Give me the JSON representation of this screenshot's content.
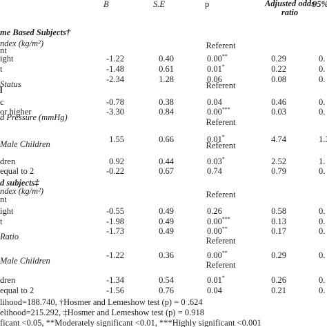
{
  "header": {
    "b": "B",
    "se": "S.E",
    "p": "p",
    "or": "Adjusted odds ratio",
    "ci": "95%"
  },
  "rows": [
    {
      "label": "me Based Subjects†",
      "style": "group"
    },
    {
      "label": "ndex (kg/m²)",
      "style": "sub"
    },
    {
      "label": "nt",
      "ref": "Referent"
    },
    {
      "label": "ight",
      "b": "-1.22",
      "se": "0.40",
      "p": "0.00",
      "sig": "**",
      "or": "0.29",
      "ci": "0."
    },
    {
      "label": "t",
      "b": "-1.48",
      "se": "0.61",
      "p": "0.01",
      "sig": "*",
      "or": "0.22",
      "ci": "0."
    },
    {
      "b": "-2.34",
      "se": "1.28",
      "p": "0.06",
      "or": "0.08",
      "ci": "0."
    },
    {
      "label": "Status",
      "style": "sub"
    },
    {
      "label": "l",
      "style": "bold",
      "ref": "Referent"
    },
    {
      "label": "c",
      "b": "-0.78",
      "se": "0.38",
      "p": "0.04",
      "or": "0.46",
      "ci": "0."
    },
    {
      "label": "or higher",
      "b": "-3.30",
      "se": "0.84",
      "p": "0.00",
      "sig": "***",
      "or": "0.03",
      "ci": "0."
    },
    {
      "label": "d Pressure (mmHg)",
      "style": "sub"
    },
    {
      "ref": "Referent"
    },
    {
      "b": "1.55",
      "se": "0.66",
      "p": "0.01",
      "sig": "*",
      "or": "4.74",
      "ci": "1.3"
    },
    {
      "label": "Male Children",
      "style": "sub"
    },
    {
      "ref": "Referent"
    },
    {
      "label": "dren",
      "b": "0.92",
      "se": "0.44",
      "p": "0.03",
      "sig": "*",
      "or": "2.52",
      "ci": "1."
    },
    {
      "label": "equal to 2",
      "b": "-0.22",
      "se": "0.67",
      "p": "0.74",
      "or": "0.79",
      "ci": "0."
    },
    {
      "label": "d subjects‡",
      "style": "group"
    },
    {
      "label": "ndex (kg/m²)",
      "style": "sub"
    },
    {
      "label": "nt",
      "ref": "Referent"
    },
    {
      "label": "ight",
      "b": "-0.55",
      "se": "0.49",
      "p": "0.26",
      "or": "0.58",
      "ci": "0."
    },
    {
      "label": "t",
      "b": "-1.98",
      "se": "0.49",
      "p": "0.00",
      "sig": "***",
      "or": "0.13",
      "ci": "0."
    },
    {
      "b": "-1.73",
      "se": "0.49",
      "p": "0.00",
      "sig": "**",
      "or": "0.17",
      "ci": "0."
    },
    {
      "label": "Ratio",
      "style": "sub"
    },
    {
      "ref": "Referent"
    },
    {
      "b": "-1.22",
      "se": "0.36",
      "p": "0.00",
      "sig": "**",
      "or": "0.29",
      "ci": "0."
    },
    {
      "label": "Male Children",
      "style": "sub"
    },
    {
      "ref": "Referent"
    },
    {
      "label": "dren",
      "b": "-1.34",
      "se": "0.54",
      "p": "0.01",
      "sig": "*",
      "or": "0.26",
      "ci": "0."
    },
    {
      "label": "equal to 2",
      "b": "-1.56",
      "se": "0.76",
      "p": "0.04",
      "or": "0.21",
      "ci": "0."
    }
  ],
  "footnotes": [
    "lihood=188.740, †Hosmer and Lemeshow test (p) = 0 .624",
    "elihood=215.292, ‡Hosmer and Lemeshow test (p) = 0.918",
    "ficant <0.05, **Moderately significant <0.01, ***Highly significant <0.001"
  ]
}
